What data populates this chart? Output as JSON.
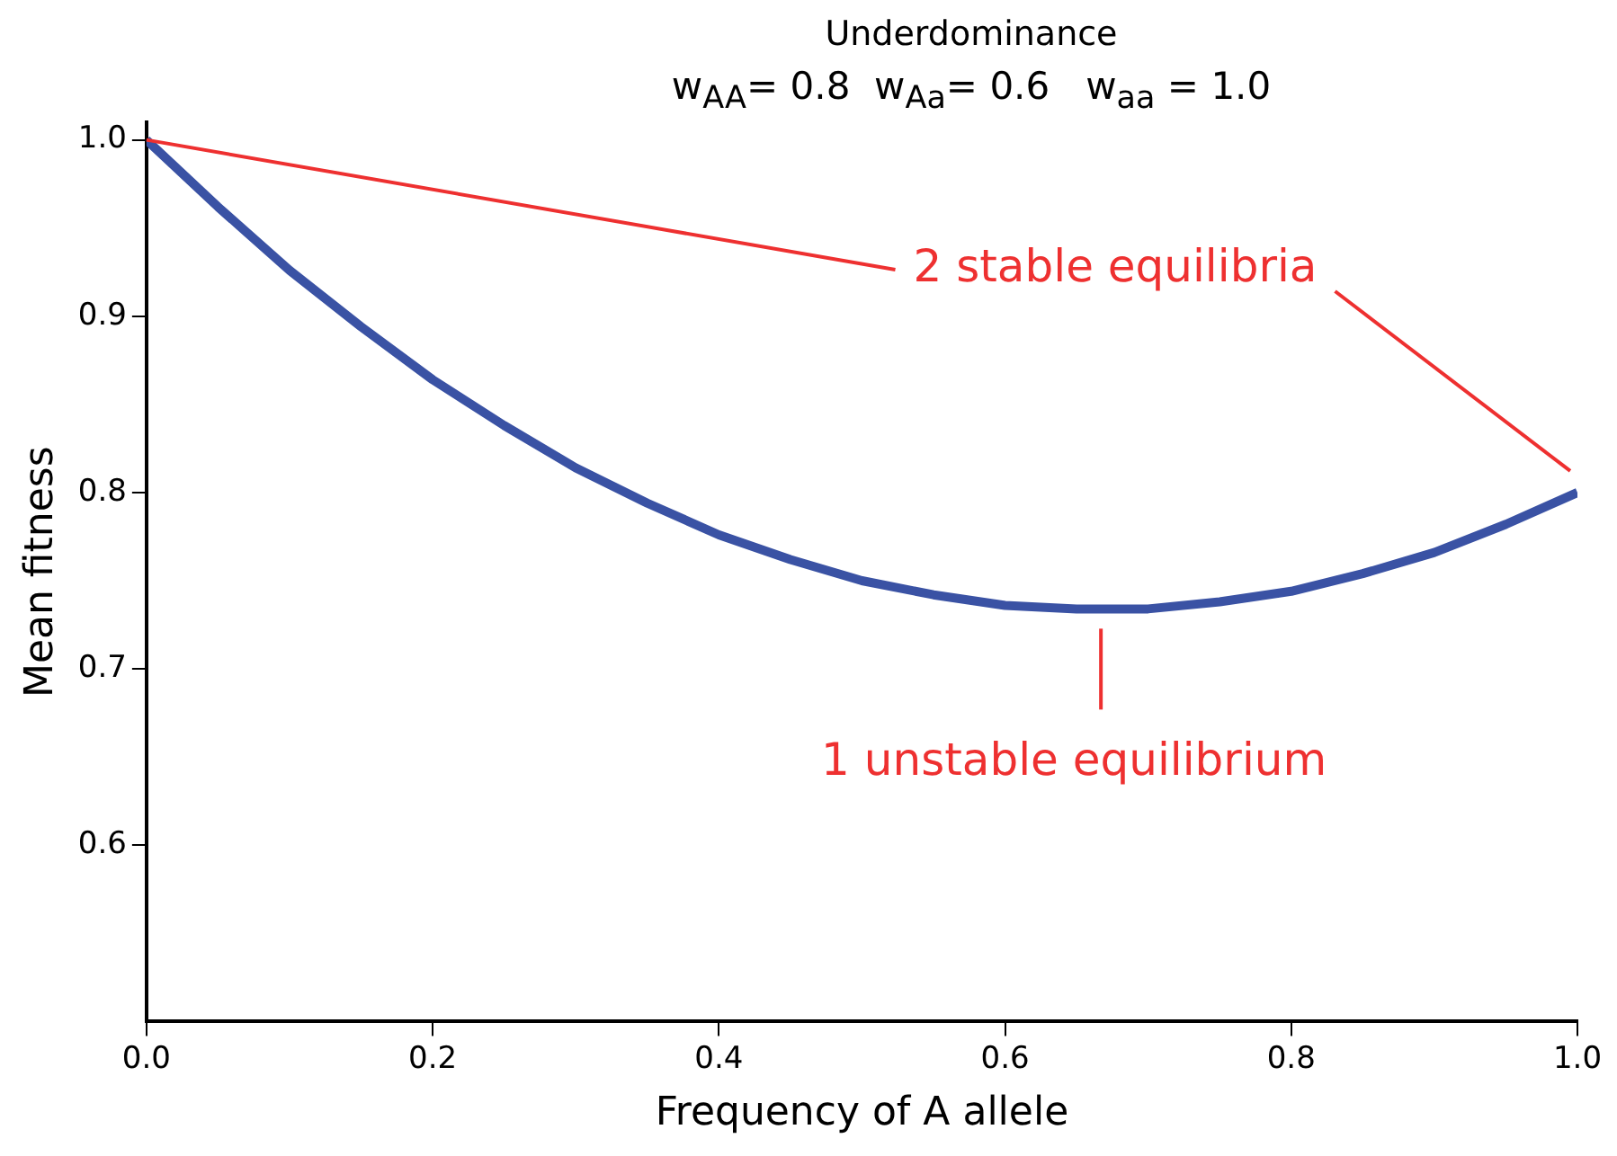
{
  "chart_data": {
    "type": "line",
    "title": "Underdominance",
    "subtitle": "w$_{AA}$= 0.8  w$_{Aa}$= 0.6   w$_{aa}$ = 1.0",
    "xlabel": "Frequency of A allele",
    "ylabel": "Mean fitness",
    "x": [
      0,
      0.05,
      0.1,
      0.15,
      0.2,
      0.25,
      0.3,
      0.35,
      0.4,
      0.45,
      0.5,
      0.55,
      0.6,
      0.65,
      0.7,
      0.75,
      0.8,
      0.85,
      0.9,
      0.95,
      1.0
    ],
    "series": [
      {
        "color": "#3a52a4",
        "values": [
          1.0,
          0.962,
          0.926,
          0.894,
          0.864,
          0.838,
          0.814,
          0.794,
          0.776,
          0.762,
          0.75,
          0.742,
          0.736,
          0.734,
          0.734,
          0.738,
          0.744,
          0.754,
          0.766,
          0.782,
          0.8
        ]
      }
    ],
    "xlim": [
      0,
      1
    ],
    "xticks": [
      {
        "value": 0,
        "label": "0.0"
      },
      0.2,
      0.4,
      0.6,
      0.8,
      {
        "value": 1,
        "label": "1.0"
      }
    ],
    "ylim": [
      0.5,
      1.01
    ],
    "yticks": [
      0.6,
      0.7,
      0.8,
      0.9,
      {
        "value": 1,
        "label": "1.0"
      }
    ],
    "annotations": [
      {
        "text": "2 stable equilibria",
        "x": 0,
        "y": 1.0
      },
      {
        "text": "1 unstable equilibrium",
        "x": 0.667,
        "y": 0.733
      }
    ],
    "grid": false,
    "legend": false,
    "marker": "none",
    "line_style": "solid"
  }
}
